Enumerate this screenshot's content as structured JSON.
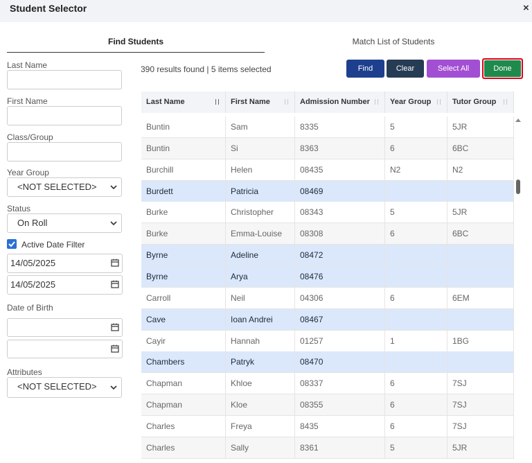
{
  "header": {
    "title": "Student Selector",
    "close": "×"
  },
  "tabs": [
    "Find Students",
    "Match List of Students"
  ],
  "filters": {
    "last_name": "Last Name",
    "first_name": "First Name",
    "class_group": "Class/Group",
    "year_group": {
      "label": "Year Group",
      "value": "<NOT SELECTED>"
    },
    "status": {
      "label": "Status",
      "value": "On Roll"
    },
    "active_date_filter": "Active Date Filter",
    "date_from": "14/05/2025",
    "date_to": "14/05/2025",
    "date_of_birth": "Date of Birth",
    "attributes": {
      "label": "Attributes",
      "value": "<NOT SELECTED>"
    }
  },
  "summary": "390 results found | 5 items selected",
  "buttons": [
    "Find",
    "Clear",
    "Select All",
    "Done"
  ],
  "table": {
    "columns": [
      "Last Name",
      "First Name",
      "Admission Number",
      "Year Group",
      "Tutor Group"
    ],
    "rows": [
      [
        "Buntin",
        "Sam",
        "8335",
        "5",
        "5JR"
      ],
      [
        "Buntin",
        "Si",
        "8363",
        "6",
        "6BC"
      ],
      [
        "Burchill",
        "Helen",
        "08435",
        "N2",
        "N2"
      ],
      [
        "Burdett",
        "Patricia",
        "08469",
        null,
        null
      ],
      [
        "Burke",
        "Christopher",
        "08343",
        "5",
        "5JR"
      ],
      [
        "Burke",
        "Emma-Louise",
        "08308",
        "6",
        "6BC"
      ],
      [
        "Byrne",
        "Adeline",
        "08472",
        null,
        null
      ],
      [
        "Byrne",
        "Arya",
        "08476",
        null,
        null
      ],
      [
        "Carroll",
        "Neil",
        "04306",
        "6",
        "6EM"
      ],
      [
        "Cave",
        "Ioan Andrei",
        "08467",
        null,
        null
      ],
      [
        "Cayir",
        "Hannah",
        "01257",
        "1",
        "1BG"
      ],
      [
        "Chambers",
        "Patryk",
        "08470",
        null,
        null
      ],
      [
        "Chapman",
        "Khloe",
        "08337",
        "6",
        "7SJ"
      ],
      [
        "Chapman",
        "Kloe",
        "08355",
        "6",
        "7SJ"
      ],
      [
        "Charles",
        "Freya",
        "8435",
        "6",
        "7SJ"
      ],
      [
        "Charles",
        "Sally",
        "8361",
        "5",
        "5JR"
      ]
    ],
    "selected_rows": [
      3,
      6,
      7,
      9,
      11
    ]
  }
}
